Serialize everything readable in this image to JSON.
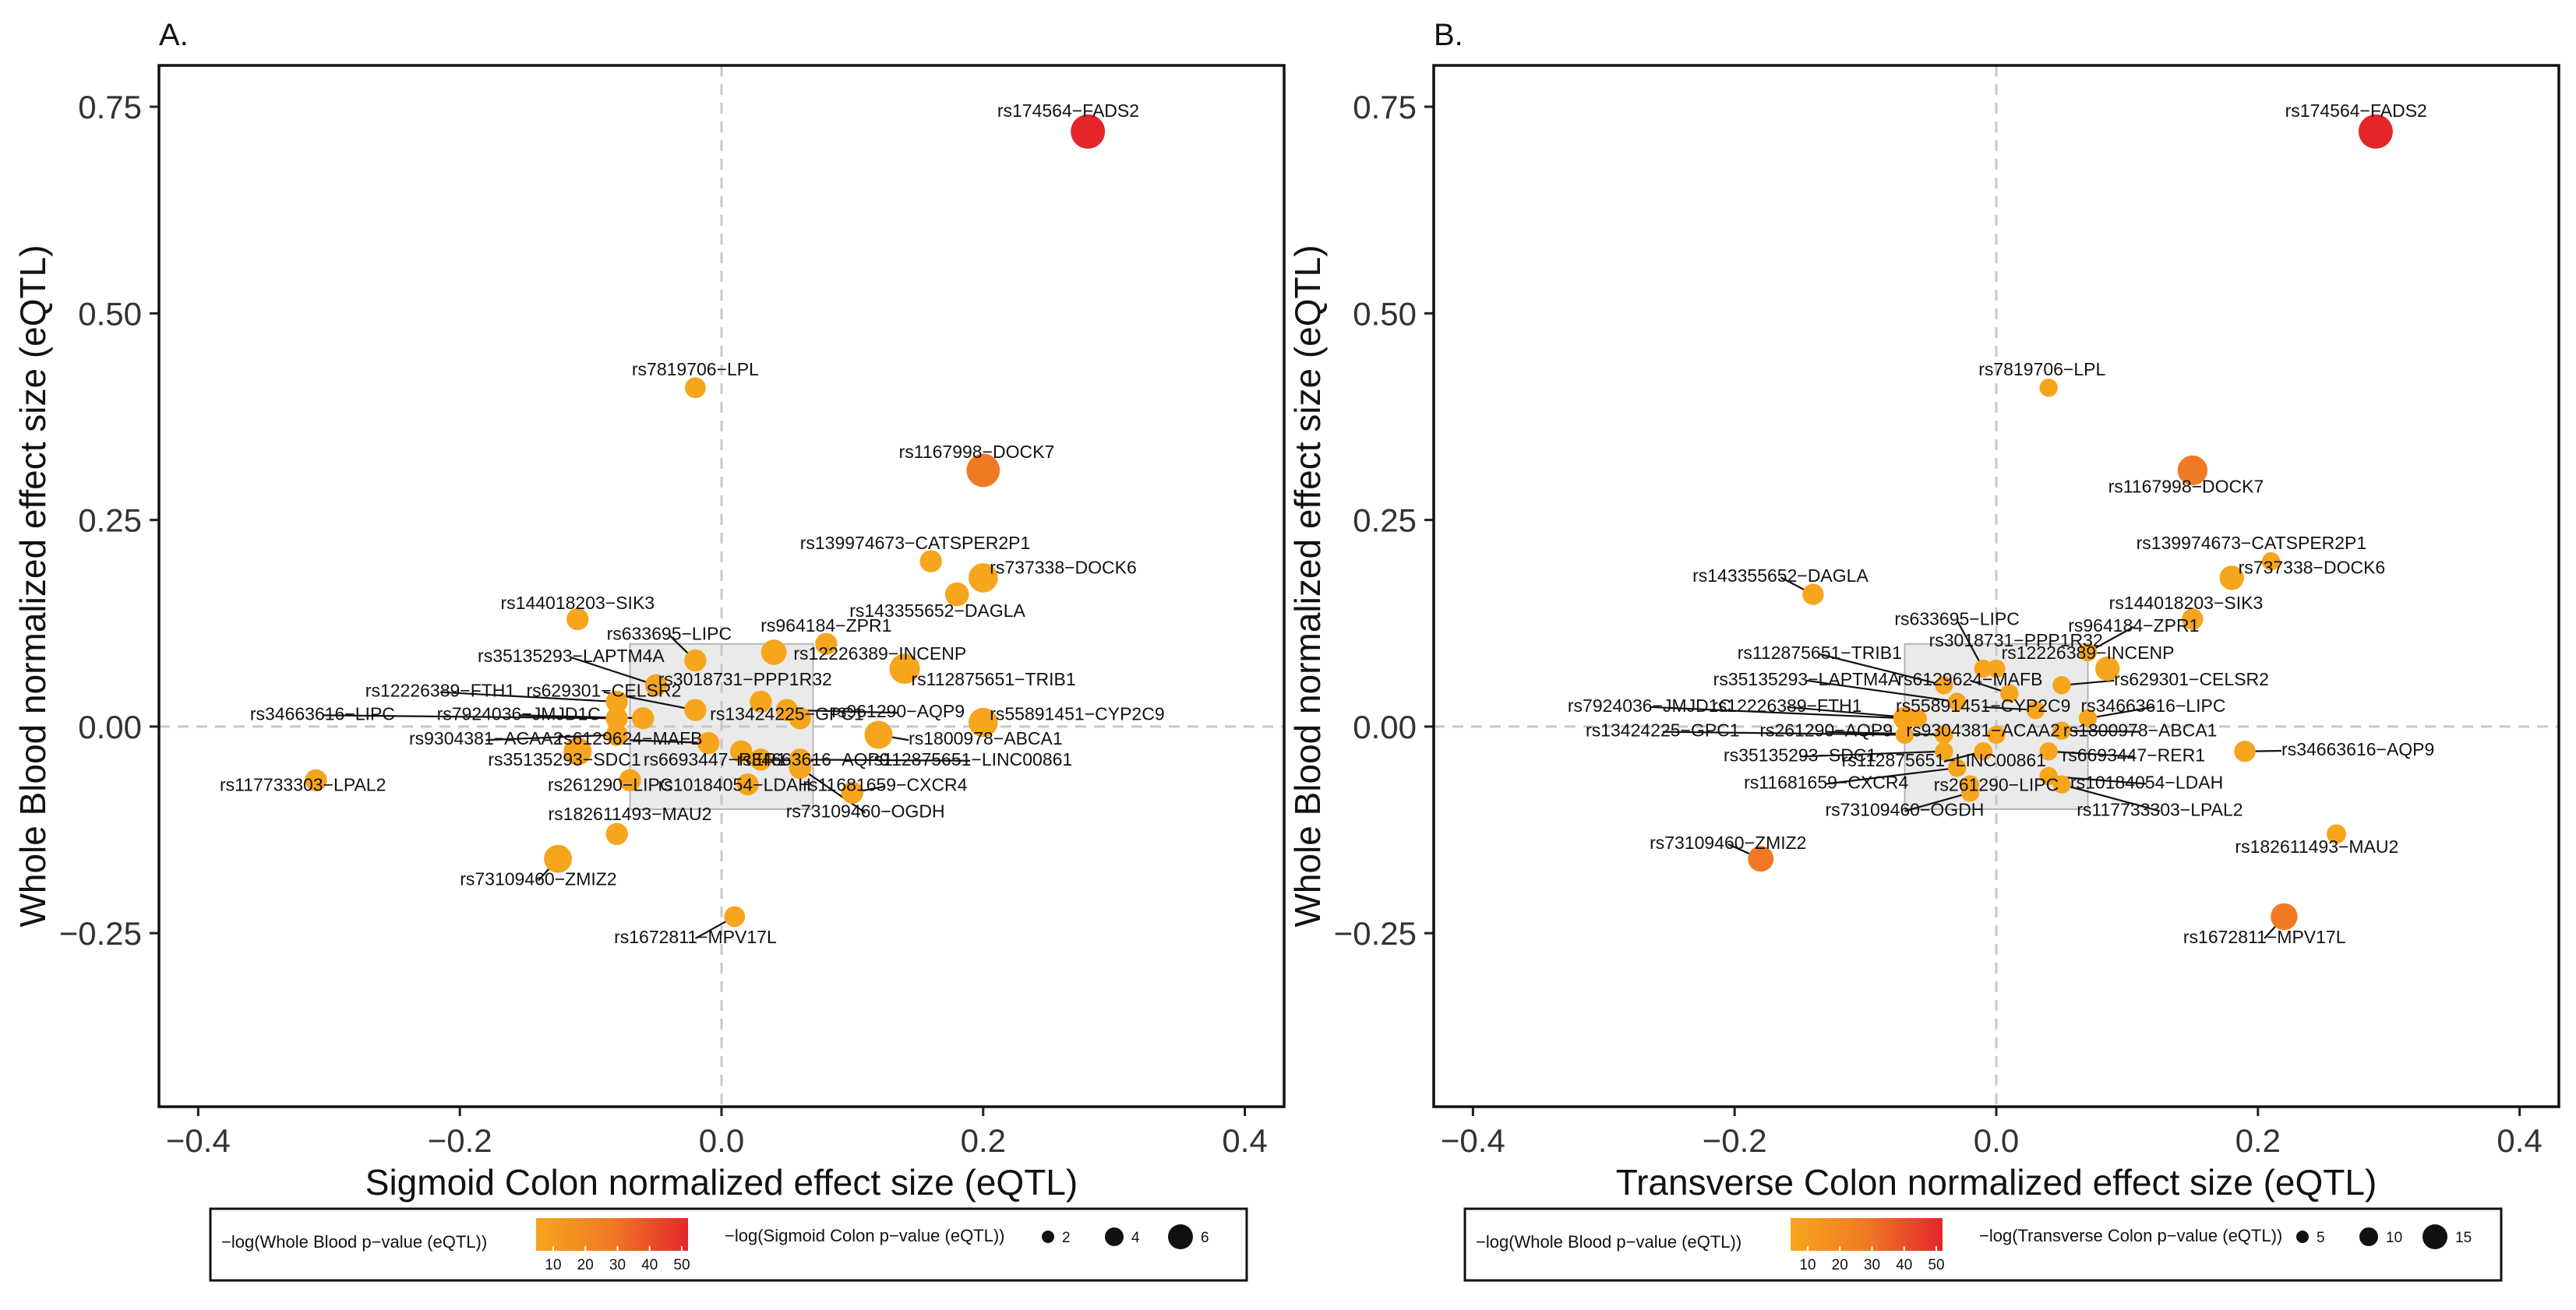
{
  "legend_colors": {
    "low": "#f7a51c",
    "mid": "#f07a24",
    "high": "#e4262a"
  },
  "chart_data": [
    {
      "type": "scatter",
      "panel_label": "A.",
      "xlabel": "Sigmoid Colon normalized effect size (eQTL)",
      "ylabel": "Whole Blood normalized effect size (eQTL)",
      "xlim": [
        -0.43,
        0.43
      ],
      "ylim": [
        -0.46,
        0.8
      ],
      "xticks": [
        -0.4,
        -0.2,
        0.0,
        0.2,
        0.4
      ],
      "xtick_labels": [
        "−0.4",
        "−0.2",
        "0.0",
        "0.2",
        "0.4"
      ],
      "yticks": [
        -0.25,
        0.0,
        0.25,
        0.5,
        0.75
      ],
      "ytick_labels": [
        "−0.25",
        "0.00",
        "0.25",
        "0.50",
        "0.75"
      ],
      "ref_lines": {
        "x": 0,
        "y": 0
      },
      "highlight_box": {
        "x": [
          -0.07,
          0.07
        ],
        "y": [
          -0.1,
          0.1
        ]
      },
      "legend_color_title": "−log(Whole Blood p−value (eQTL))",
      "legend_color_ticks": [
        "10",
        "20",
        "30",
        "40",
        "50"
      ],
      "legend_size_title": "−log(Sigmoid Colon p−value (eQTL))",
      "legend_size_ticks": [
        "2",
        "4",
        "6"
      ],
      "points": [
        {
          "label": "rs174564−FADS2",
          "x": 0.28,
          "y": 0.72,
          "size": 6.5,
          "color": "#e4262a",
          "lx": 0.265,
          "ly": 0.738,
          "anchor": "middle"
        },
        {
          "label": "rs7819706−LPL",
          "x": -0.02,
          "y": 0.41,
          "size": 1.2,
          "color": "#f7a51c",
          "lx": -0.02,
          "ly": 0.425,
          "anchor": "middle"
        },
        {
          "label": "rs1167998−DOCK7",
          "x": 0.2,
          "y": 0.31,
          "size": 6.0,
          "color": "#f07a24",
          "lx": 0.195,
          "ly": 0.325,
          "anchor": "middle"
        },
        {
          "label": "rs139974673−CATSPER2P1",
          "x": 0.16,
          "y": 0.2,
          "size": 1.5,
          "color": "#f7a51c",
          "lx": 0.148,
          "ly": 0.215,
          "anchor": "middle"
        },
        {
          "label": "rs737338−DOCK6",
          "x": 0.2,
          "y": 0.18,
          "size": 4.0,
          "color": "#f7a51c",
          "lx": 0.205,
          "ly": 0.185,
          "anchor": "start"
        },
        {
          "label": "rs143355652−DAGLA",
          "x": 0.18,
          "y": 0.16,
          "size": 2.0,
          "color": "#f7a51c",
          "lx": 0.165,
          "ly": 0.133,
          "anchor": "middle"
        },
        {
          "label": "rs144018203−SIK3",
          "x": -0.11,
          "y": 0.13,
          "size": 1.5,
          "color": "#f7a51c",
          "lx": -0.11,
          "ly": 0.142,
          "anchor": "middle"
        },
        {
          "label": "rs633695−LIPC",
          "x": -0.02,
          "y": 0.08,
          "size": 1.5,
          "color": "#f7a51c",
          "lx": -0.04,
          "ly": 0.105,
          "anchor": "middle"
        },
        {
          "label": "rs964184−ZPR1",
          "x": 0.08,
          "y": 0.1,
          "size": 1.5,
          "color": "#f7a51c",
          "lx": 0.08,
          "ly": 0.115,
          "anchor": "middle"
        },
        {
          "label": "rs12226389−INCENP",
          "x": 0.04,
          "y": 0.09,
          "size": 2.5,
          "color": "#f7a51c",
          "lx": 0.055,
          "ly": 0.081,
          "anchor": "start"
        },
        {
          "label": "rs35135293−LAPTM4A",
          "x": -0.05,
          "y": 0.05,
          "size": 1.5,
          "color": "#f7a51c",
          "lx": -0.115,
          "ly": 0.078,
          "anchor": "middle"
        },
        {
          "label": "rs3018731−PPP1R32",
          "x": 0.03,
          "y": 0.03,
          "size": 1.5,
          "color": "#f7a51c",
          "lx": 0.018,
          "ly": 0.05,
          "anchor": "middle"
        },
        {
          "label": "rs112875651−TRIB1",
          "x": 0.14,
          "y": 0.07,
          "size": 4.5,
          "color": "#f7a51c",
          "lx": 0.145,
          "ly": 0.05,
          "anchor": "start"
        },
        {
          "label": "rs12226389−FTH1",
          "x": -0.08,
          "y": 0.03,
          "size": 1.5,
          "color": "#f7a51c",
          "lx": -0.215,
          "ly": 0.036,
          "anchor": "middle"
        },
        {
          "label": "rs629301−CELSR2",
          "x": -0.02,
          "y": 0.02,
          "size": 1.5,
          "color": "#f7a51c",
          "lx": -0.09,
          "ly": 0.036,
          "anchor": "middle"
        },
        {
          "label": "rs961290−AQP9",
          "x": 0.05,
          "y": 0.02,
          "size": 1.5,
          "color": "#f7a51c",
          "lx": 0.135,
          "ly": 0.011,
          "anchor": "middle"
        },
        {
          "label": "rs55891451−CYP2C9",
          "x": 0.2,
          "y": 0.005,
          "size": 4.0,
          "color": "#f7a51c",
          "lx": 0.205,
          "ly": 0.008,
          "anchor": "start"
        },
        {
          "label": "rs34663616−LIPC",
          "x": -0.08,
          "y": 0.01,
          "size": 1.5,
          "color": "#f7a51c",
          "lx": -0.305,
          "ly": 0.008,
          "anchor": "middle"
        },
        {
          "label": "rs7924036−JMJD1C",
          "x": -0.06,
          "y": 0.01,
          "size": 1.5,
          "color": "#f7a51c",
          "lx": -0.155,
          "ly": 0.008,
          "anchor": "middle"
        },
        {
          "label": "rs13424225−GPC1",
          "x": 0.06,
          "y": 0.01,
          "size": 1.5,
          "color": "#f7a51c",
          "lx": 0.05,
          "ly": 0.008,
          "anchor": "middle"
        },
        {
          "label": "rs1800978−ABCA1",
          "x": 0.12,
          "y": -0.01,
          "size": 3.5,
          "color": "#f7a51c",
          "lx": 0.143,
          "ly": -0.022,
          "anchor": "start"
        },
        {
          "label": "rs9304381−ACAA2",
          "x": -0.08,
          "y": -0.01,
          "size": 1.5,
          "color": "#f7a51c",
          "lx": -0.18,
          "ly": -0.022,
          "anchor": "middle"
        },
        {
          "label": "rs6129624−MAFB",
          "x": -0.01,
          "y": -0.02,
          "size": 1.5,
          "color": "#f7a51c",
          "lx": -0.07,
          "ly": -0.022,
          "anchor": "middle"
        },
        {
          "label": "rs35135293−SDC1",
          "x": -0.11,
          "y": -0.03,
          "size": 3.5,
          "color": "#f7a51c",
          "lx": -0.12,
          "ly": -0.047,
          "anchor": "middle"
        },
        {
          "label": "rs6693447−RER1",
          "x": 0.015,
          "y": -0.03,
          "size": 1.5,
          "color": "#f7a51c",
          "lx": -0.005,
          "ly": -0.047,
          "anchor": "middle"
        },
        {
          "label": "rs34663616−AQP9",
          "x": 0.03,
          "y": -0.04,
          "size": 1.5,
          "color": "#f7a51c",
          "lx": 0.07,
          "ly": -0.047,
          "anchor": "middle"
        },
        {
          "label": "rs112875651−LINC00861",
          "x": 0.06,
          "y": -0.04,
          "size": 1.5,
          "color": "#f7a51c",
          "lx": 0.19,
          "ly": -0.047,
          "anchor": "middle"
        },
        {
          "label": "rs117733303−LPAL2",
          "x": -0.31,
          "y": -0.065,
          "size": 1.5,
          "color": "#f7a51c",
          "lx": -0.32,
          "ly": -0.078,
          "anchor": "middle"
        },
        {
          "label": "rs261290−LIPC",
          "x": -0.07,
          "y": -0.065,
          "size": 1.5,
          "color": "#f7a51c",
          "lx": -0.085,
          "ly": -0.078,
          "anchor": "middle"
        },
        {
          "label": "rs10184054−LDAH",
          "x": 0.02,
          "y": -0.07,
          "size": 1.5,
          "color": "#f7a51c",
          "lx": 0.01,
          "ly": -0.078,
          "anchor": "middle"
        },
        {
          "label": "rs11681659−CXCR4",
          "x": 0.1,
          "y": -0.08,
          "size": 1.5,
          "color": "#f7a51c",
          "lx": 0.125,
          "ly": -0.078,
          "anchor": "middle"
        },
        {
          "label": "rs73109460−OGDH",
          "x": 0.06,
          "y": -0.05,
          "size": 1.5,
          "color": "#f7a51c",
          "lx": 0.11,
          "ly": -0.11,
          "anchor": "middle"
        },
        {
          "label": "rs182611493−MAU2",
          "x": -0.08,
          "y": -0.13,
          "size": 1.5,
          "color": "#f7a51c",
          "lx": -0.07,
          "ly": -0.113,
          "anchor": "middle"
        },
        {
          "label": "rs73109460−ZMIZ2",
          "x": -0.125,
          "y": -0.16,
          "size": 3.5,
          "color": "#f7a51c",
          "lx": -0.14,
          "ly": -0.192,
          "anchor": "middle"
        },
        {
          "label": "rs1672811−MPV17L",
          "x": 0.01,
          "y": -0.23,
          "size": 1.2,
          "color": "#f7a51c",
          "lx": -0.02,
          "ly": -0.262,
          "anchor": "middle"
        }
      ]
    },
    {
      "type": "scatter",
      "panel_label": "B.",
      "xlabel": "Transverse Colon normalized effect size (eQTL)",
      "ylabel": "Whole Blood normalized effect size (eQTL)",
      "xlim": [
        -0.43,
        0.43
      ],
      "ylim": [
        -0.46,
        0.8
      ],
      "xticks": [
        -0.4,
        -0.2,
        0.0,
        0.2,
        0.4
      ],
      "xtick_labels": [
        "−0.4",
        "−0.2",
        "0.0",
        "0.2",
        "0.4"
      ],
      "yticks": [
        -0.25,
        0.0,
        0.25,
        0.5,
        0.75
      ],
      "ytick_labels": [
        "−0.25",
        "0.00",
        "0.25",
        "0.50",
        "0.75"
      ],
      "ref_lines": {
        "x": 0,
        "y": 0
      },
      "highlight_box": {
        "x": [
          -0.07,
          0.07
        ],
        "y": [
          -0.1,
          0.1
        ]
      },
      "legend_color_title": "−log(Whole Blood p−value (eQTL))",
      "legend_color_ticks": [
        "10",
        "20",
        "30",
        "40",
        "50"
      ],
      "legend_size_title": "−log(Transverse Colon p−value (eQTL))",
      "legend_size_ticks": [
        "5",
        "10",
        "15"
      ],
      "points": [
        {
          "label": "rs174564−FADS2",
          "x": 0.29,
          "y": 0.72,
          "size": 15,
          "color": "#e4262a",
          "lx": 0.275,
          "ly": 0.738,
          "anchor": "middle"
        },
        {
          "label": "rs7819706−LPL",
          "x": 0.04,
          "y": 0.41,
          "size": 1.5,
          "color": "#f7a51c",
          "lx": 0.035,
          "ly": 0.425,
          "anchor": "middle"
        },
        {
          "label": "rs1167998−DOCK7",
          "x": 0.15,
          "y": 0.31,
          "size": 10,
          "color": "#f07a24",
          "lx": 0.145,
          "ly": 0.283,
          "anchor": "middle"
        },
        {
          "label": "rs139974673−CATSPER2P1",
          "x": 0.21,
          "y": 0.2,
          "size": 1.5,
          "color": "#f7a51c",
          "lx": 0.195,
          "ly": 0.215,
          "anchor": "middle"
        },
        {
          "label": "rs737338−DOCK6",
          "x": 0.18,
          "y": 0.18,
          "size": 5,
          "color": "#f7a51c",
          "lx": 0.185,
          "ly": 0.185,
          "anchor": "start"
        },
        {
          "label": "rs143355652−DAGLA",
          "x": -0.14,
          "y": 0.16,
          "size": 3,
          "color": "#f7a51c",
          "lx": -0.165,
          "ly": 0.175,
          "anchor": "middle"
        },
        {
          "label": "rs144018203−SIK3",
          "x": 0.15,
          "y": 0.13,
          "size": 3,
          "color": "#f7a51c",
          "lx": 0.145,
          "ly": 0.142,
          "anchor": "middle"
        },
        {
          "label": "rs633695−LIPC",
          "x": -0.01,
          "y": 0.07,
          "size": 1.5,
          "color": "#f7a51c",
          "lx": -0.03,
          "ly": 0.123,
          "anchor": "middle"
        },
        {
          "label": "rs964184−ZPR1",
          "x": 0.07,
          "y": 0.09,
          "size": 1.5,
          "color": "#f7a51c",
          "lx": 0.105,
          "ly": 0.115,
          "anchor": "middle"
        },
        {
          "label": "rs3018731−PPP1R32",
          "x": 0.0,
          "y": 0.07,
          "size": 1.5,
          "color": "#f7a51c",
          "lx": 0.015,
          "ly": 0.097,
          "anchor": "middle"
        },
        {
          "label": "rs112875651−TRIB1",
          "x": -0.04,
          "y": 0.05,
          "size": 1.5,
          "color": "#f7a51c",
          "lx": -0.135,
          "ly": 0.082,
          "anchor": "middle"
        },
        {
          "label": "rs12226389−INCENP",
          "x": 0.085,
          "y": 0.07,
          "size": 5,
          "color": "#f7a51c",
          "lx": 0.07,
          "ly": 0.082,
          "anchor": "middle"
        },
        {
          "label": "rs35135293−LAPTM4A",
          "x": -0.03,
          "y": 0.03,
          "size": 1.5,
          "color": "#f7a51c",
          "lx": -0.145,
          "ly": 0.05,
          "anchor": "middle"
        },
        {
          "label": "rs6129624−MAFB",
          "x": 0.01,
          "y": 0.04,
          "size": 1.5,
          "color": "#f7a51c",
          "lx": -0.02,
          "ly": 0.05,
          "anchor": "middle"
        },
        {
          "label": "rs629301−CELSR2",
          "x": 0.05,
          "y": 0.05,
          "size": 1.5,
          "color": "#f7a51c",
          "lx": 0.09,
          "ly": 0.05,
          "anchor": "start"
        },
        {
          "label": "rs7924036−JMJD1C",
          "x": -0.07,
          "y": 0.01,
          "size": 4,
          "color": "#f7a51c",
          "lx": -0.265,
          "ly": 0.018,
          "anchor": "middle"
        },
        {
          "label": "rs12226389−FTH1",
          "x": -0.06,
          "y": 0.01,
          "size": 1.5,
          "color": "#f7a51c",
          "lx": -0.16,
          "ly": 0.018,
          "anchor": "middle"
        },
        {
          "label": "rs55891451−CYP2C9",
          "x": 0.03,
          "y": 0.02,
          "size": 1.5,
          "color": "#f7a51c",
          "lx": -0.01,
          "ly": 0.018,
          "anchor": "middle"
        },
        {
          "label": "rs34663616−LIPC",
          "x": 0.07,
          "y": 0.01,
          "size": 1.5,
          "color": "#f7a51c",
          "lx": 0.12,
          "ly": 0.018,
          "anchor": "middle"
        },
        {
          "label": "rs13424225−GPC1",
          "x": -0.07,
          "y": -0.01,
          "size": 1.5,
          "color": "#f7a51c",
          "lx": -0.255,
          "ly": -0.012,
          "anchor": "middle"
        },
        {
          "label": "rs261290−AQP9",
          "x": -0.04,
          "y": -0.01,
          "size": 1.5,
          "color": "#f7a51c",
          "lx": -0.13,
          "ly": -0.012,
          "anchor": "middle"
        },
        {
          "label": "rs9304381−ACAA2",
          "x": 0.0,
          "y": -0.01,
          "size": 1.5,
          "color": "#f7a51c",
          "lx": -0.01,
          "ly": -0.012,
          "anchor": "middle"
        },
        {
          "label": "rs1800978−ABCA1",
          "x": 0.05,
          "y": -0.005,
          "size": 1.5,
          "color": "#f7a51c",
          "lx": 0.11,
          "ly": -0.012,
          "anchor": "middle"
        },
        {
          "label": "rs34663616−AQP9",
          "x": 0.19,
          "y": -0.03,
          "size": 3,
          "color": "#f7a51c",
          "lx": 0.218,
          "ly": -0.035,
          "anchor": "start"
        },
        {
          "label": "rs35135293−SDC1",
          "x": -0.04,
          "y": -0.03,
          "size": 1.5,
          "color": "#f7a51c",
          "lx": -0.15,
          "ly": -0.042,
          "anchor": "middle"
        },
        {
          "label": "rs112875651−LINC00861",
          "x": -0.01,
          "y": -0.03,
          "size": 1.5,
          "color": "#f7a51c",
          "lx": -0.04,
          "ly": -0.048,
          "anchor": "middle"
        },
        {
          "label": "rs6693447−RER1",
          "x": 0.04,
          "y": -0.03,
          "size": 1.5,
          "color": "#f7a51c",
          "lx": 0.105,
          "ly": -0.042,
          "anchor": "middle"
        },
        {
          "label": "rs11681659−CXCR4",
          "x": -0.03,
          "y": -0.05,
          "size": 1.5,
          "color": "#f7a51c",
          "lx": -0.13,
          "ly": -0.075,
          "anchor": "middle"
        },
        {
          "label": "rs261290−LIPC",
          "x": -0.02,
          "y": -0.07,
          "size": 1.5,
          "color": "#f7a51c",
          "lx": 0.0,
          "ly": -0.078,
          "anchor": "middle"
        },
        {
          "label": "rs10184054−LDAH",
          "x": 0.04,
          "y": -0.06,
          "size": 1.5,
          "color": "#f7a51c",
          "lx": 0.115,
          "ly": -0.075,
          "anchor": "middle"
        },
        {
          "label": "rs73109460−OGDH",
          "x": -0.02,
          "y": -0.08,
          "size": 1.5,
          "color": "#f7a51c",
          "lx": -0.07,
          "ly": -0.108,
          "anchor": "middle"
        },
        {
          "label": "rs117733303−LPAL2",
          "x": 0.05,
          "y": -0.07,
          "size": 1.5,
          "color": "#f7a51c",
          "lx": 0.125,
          "ly": -0.108,
          "anchor": "middle"
        },
        {
          "label": "rs73109460−ZMIZ2",
          "x": -0.18,
          "y": -0.16,
          "size": 6,
          "color": "#f07a24",
          "lx": -0.205,
          "ly": -0.148,
          "anchor": "middle"
        },
        {
          "label": "rs182611493−MAU2",
          "x": 0.26,
          "y": -0.13,
          "size": 2,
          "color": "#f7a51c",
          "lx": 0.245,
          "ly": -0.153,
          "anchor": "middle"
        },
        {
          "label": "rs1672811−MPV17L",
          "x": 0.22,
          "y": -0.23,
          "size": 7,
          "color": "#f07a24",
          "lx": 0.205,
          "ly": -0.262,
          "anchor": "middle"
        }
      ]
    }
  ]
}
